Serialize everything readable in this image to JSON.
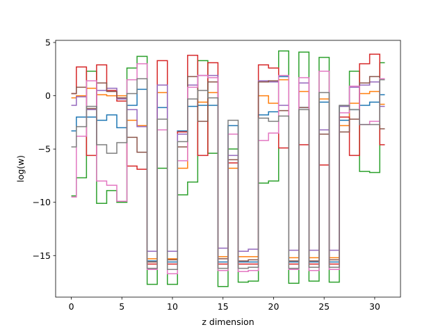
{
  "chart_data": {
    "type": "line",
    "drawstyle": "steps-mid",
    "xlabel": "z dimension",
    "ylabel": "log(w)",
    "xlim": [
      -1.55,
      32.55
    ],
    "ylim": [
      -18.9,
      5.2
    ],
    "xticks": [
      0,
      5,
      10,
      15,
      20,
      25,
      30
    ],
    "xtick_labels": [
      "0",
      "5",
      "10",
      "15",
      "20",
      "25",
      "30"
    ],
    "yticks": [
      5,
      0,
      -5,
      -10,
      -15
    ],
    "ytick_labels": [
      "5",
      "0",
      "−5",
      "−10",
      "−15"
    ],
    "grid": false,
    "legend": "none",
    "x": [
      0,
      1,
      2,
      3,
      4,
      5,
      6,
      7,
      8,
      9,
      10,
      11,
      12,
      13,
      14,
      15,
      16,
      17,
      18,
      19,
      20,
      21,
      22,
      23,
      24,
      25,
      26,
      27,
      28,
      29,
      30,
      31
    ],
    "series": [
      {
        "color": "#1f77b4",
        "values": [
          -3.3,
          -2.0,
          -2.0,
          -2.3,
          -1.8,
          -3.0,
          -0.9,
          0.6,
          -15.5,
          -1.1,
          -15.6,
          -3.3,
          -1.0,
          -0.9,
          -0.9,
          -15.6,
          -2.8,
          -15.6,
          -15.6,
          -1.8,
          -1.5,
          1.8,
          -15.6,
          -1.1,
          -15.6,
          -0.6,
          -15.6,
          -2.3,
          -1.3,
          -0.9,
          -0.6,
          0.1
        ]
      },
      {
        "color": "#ff7f0e",
        "values": [
          -0.2,
          0.0,
          0.7,
          0.1,
          0.0,
          0.0,
          -2.3,
          -2.8,
          -15.3,
          0.3,
          -15.3,
          -6.8,
          1.0,
          -0.6,
          0.3,
          -15.1,
          -6.8,
          -15.1,
          -15.1,
          0.0,
          -0.7,
          1.5,
          -15.2,
          0.4,
          -15.2,
          -0.3,
          -15.2,
          -2.8,
          -0.7,
          0.2,
          0.4,
          -0.8
        ]
      },
      {
        "color": "#2ca02c",
        "values": [
          -9.4,
          -7.7,
          2.3,
          -10.1,
          -8.9,
          -10.0,
          2.6,
          3.7,
          -17.7,
          -6.8,
          -17.7,
          -9.3,
          -8.1,
          3.3,
          -5.4,
          -17.9,
          -5.0,
          -17.5,
          -17.4,
          -8.2,
          -8.0,
          4.2,
          -17.6,
          4.1,
          -17.4,
          3.6,
          -17.5,
          -1.0,
          2.3,
          -7.1,
          -7.2,
          3.1
        ]
      },
      {
        "color": "#d62728",
        "values": [
          0.2,
          2.7,
          -5.6,
          2.9,
          0.5,
          -0.5,
          -6.6,
          -6.9,
          -15.8,
          3.3,
          -15.8,
          -3.4,
          3.8,
          -5.6,
          3.1,
          -15.8,
          -6.3,
          -15.8,
          -15.8,
          2.9,
          2.6,
          -4.9,
          -15.8,
          -4.6,
          -15.8,
          -6.5,
          -15.8,
          -2.0,
          -5.6,
          3.0,
          3.9,
          -4.6
        ]
      },
      {
        "color": "#9467bd",
        "values": [
          -0.9,
          -0.1,
          -1.3,
          0.5,
          0.7,
          -0.3,
          -1.3,
          -2.9,
          -14.6,
          1.0,
          -14.6,
          -3.6,
          1.0,
          1.9,
          1.9,
          -14.3,
          -5.6,
          -14.6,
          -14.4,
          1.4,
          1.3,
          -0.9,
          -14.5,
          1.2,
          -14.5,
          -3.2,
          -14.5,
          -1.0,
          0.8,
          1.0,
          1.3,
          -1.0
        ]
      },
      {
        "color": "#8c564b",
        "values": [
          0.2,
          0.8,
          -1.2,
          1.2,
          0.4,
          -0.2,
          -3.9,
          -5.3,
          -15.6,
          -2.2,
          -15.4,
          -4.8,
          1.8,
          -2.4,
          1.3,
          -15.3,
          -6.0,
          -15.5,
          -15.4,
          1.3,
          1.4,
          -1.4,
          -15.5,
          -1.1,
          -15.5,
          -3.6,
          -15.4,
          -3.4,
          -2.2,
          1.2,
          1.8,
          -3.1
        ]
      },
      {
        "color": "#e377c2",
        "values": [
          -9.5,
          -3.8,
          1.4,
          -8.0,
          -8.4,
          -9.9,
          1.5,
          3.0,
          -16.3,
          -3.2,
          -16.7,
          -6.1,
          0.8,
          1.9,
          1.7,
          -16.4,
          -3.6,
          -16.5,
          -16.4,
          -4.2,
          -3.5,
          1.9,
          -16.3,
          1.7,
          -16.4,
          2.3,
          -16.3,
          -1.6,
          0.9,
          -2.7,
          -2.4,
          1.6
        ]
      },
      {
        "color": "#7f7f7f",
        "values": [
          -4.8,
          -2.9,
          -1.0,
          -4.6,
          -5.4,
          -4.4,
          0.2,
          1.6,
          -16.2,
          -2.2,
          -16.3,
          -4.3,
          -0.3,
          0.5,
          -0.2,
          -16.2,
          -2.3,
          -16.2,
          -16.1,
          -2.1,
          -2.4,
          -1.9,
          -16.2,
          -1.3,
          -16.1,
          0.3,
          -16.1,
          -0.9,
          -1.3,
          -2.7,
          -2.7,
          1.5
        ]
      }
    ]
  }
}
